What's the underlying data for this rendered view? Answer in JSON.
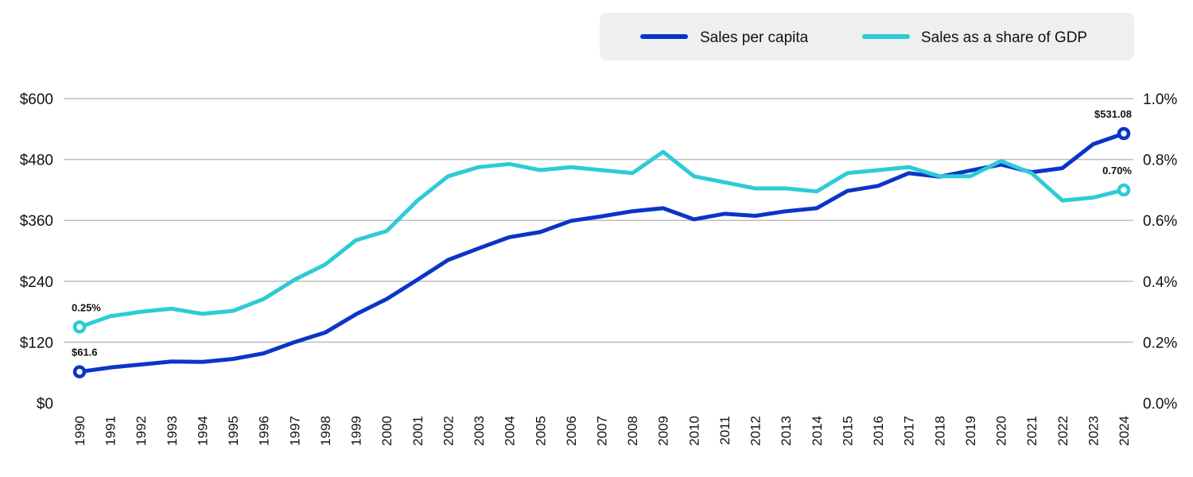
{
  "chart_data": {
    "type": "line",
    "title": "",
    "xlabel": "",
    "ylabel": "",
    "x": [
      "1990",
      "1991",
      "1992",
      "1993",
      "1994",
      "1995",
      "1996",
      "1997",
      "1998",
      "1999",
      "2000",
      "2001",
      "2002",
      "2003",
      "2004",
      "2005",
      "2006",
      "2007",
      "2008",
      "2009",
      "2010",
      "2011",
      "2012",
      "2013",
      "2014",
      "2015",
      "2016",
      "2017",
      "2018",
      "2019",
      "2020",
      "2021",
      "2022",
      "2023",
      "2024"
    ],
    "ylim_left": [
      0,
      600
    ],
    "ylim_right": [
      0,
      1.0
    ],
    "y_ticks_left": [
      "$0",
      "$120",
      "$240",
      "$360",
      "$480",
      "$600"
    ],
    "y_ticks_right": [
      "0.0%",
      "0.2%",
      "0.4%",
      "0.6%",
      "0.8%",
      "1.0%"
    ],
    "grid": true,
    "legend_position": "top-right",
    "series": [
      {
        "name": "Sales per capita",
        "axis": "left",
        "color": "#0b35c8",
        "values": [
          61.6,
          70,
          76,
          82,
          81,
          87,
          98,
          120,
          139,
          175,
          205,
          243,
          282,
          305,
          327,
          337,
          359,
          368,
          378,
          384,
          362,
          373,
          369,
          378,
          384,
          418,
          428,
          453,
          446,
          458,
          470,
          455,
          463,
          510,
          531.08
        ]
      },
      {
        "name": "Sales as a share of GDP",
        "axis": "right",
        "color": "#2ecbd6",
        "values": [
          0.25,
          0.285,
          0.3,
          0.31,
          0.293,
          0.303,
          0.342,
          0.405,
          0.455,
          0.535,
          0.565,
          0.665,
          0.745,
          0.775,
          0.785,
          0.765,
          0.775,
          0.765,
          0.755,
          0.825,
          0.745,
          0.725,
          0.705,
          0.705,
          0.695,
          0.755,
          0.765,
          0.775,
          0.745,
          0.745,
          0.795,
          0.755,
          0.665,
          0.675,
          0.7
        ]
      }
    ],
    "annotations": [
      {
        "series": 0,
        "index": 0,
        "text": "$61.6"
      },
      {
        "series": 0,
        "index": 34,
        "text": "$531.08"
      },
      {
        "series": 1,
        "index": 0,
        "text": "0.25%"
      },
      {
        "series": 1,
        "index": 34,
        "text": "0.70%"
      }
    ]
  }
}
